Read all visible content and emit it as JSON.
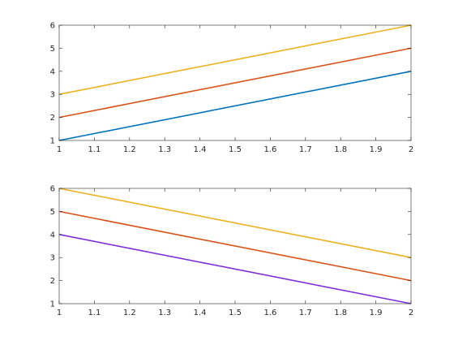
{
  "chart_data": [
    {
      "type": "line",
      "x": [
        1,
        2
      ],
      "xlim": [
        1,
        2
      ],
      "ylim": [
        1,
        6
      ],
      "xticks": [
        1,
        1.1,
        1.2,
        1.3,
        1.4,
        1.5,
        1.6,
        1.7,
        1.8,
        1.9,
        2
      ],
      "xtick_labels": [
        "1",
        "1.1",
        "1.2",
        "1.3",
        "1.4",
        "1.5",
        "1.6",
        "1.7",
        "1.8",
        "1.9",
        "2"
      ],
      "yticks": [
        1,
        2,
        3,
        4,
        5,
        6
      ],
      "ytick_labels": [
        "1",
        "2",
        "3",
        "4",
        "5",
        "6"
      ],
      "grid": false,
      "legend": "none",
      "series": [
        {
          "values": [
            1,
            4
          ],
          "color": "#0072bd"
        },
        {
          "values": [
            2,
            5
          ],
          "color": "#d95319"
        },
        {
          "values": [
            3,
            6
          ],
          "color": "#edb120"
        }
      ]
    },
    {
      "type": "line",
      "x": [
        1,
        2
      ],
      "xlim": [
        1,
        2
      ],
      "ylim": [
        1,
        6
      ],
      "xticks": [
        1,
        1.1,
        1.2,
        1.3,
        1.4,
        1.5,
        1.6,
        1.7,
        1.8,
        1.9,
        2
      ],
      "xtick_labels": [
        "1",
        "1.1",
        "1.2",
        "1.3",
        "1.4",
        "1.5",
        "1.6",
        "1.7",
        "1.8",
        "1.9",
        "2"
      ],
      "yticks": [
        1,
        2,
        3,
        4,
        5,
        6
      ],
      "ytick_labels": [
        "1",
        "2",
        "3",
        "4",
        "5",
        "6"
      ],
      "grid": false,
      "legend": "none",
      "series": [
        {
          "values": [
            4,
            1
          ],
          "color": "#7e2fdc"
        },
        {
          "values": [
            5,
            2
          ],
          "color": "#d95319"
        },
        {
          "values": [
            6,
            3
          ],
          "color": "#edb120"
        }
      ]
    }
  ]
}
